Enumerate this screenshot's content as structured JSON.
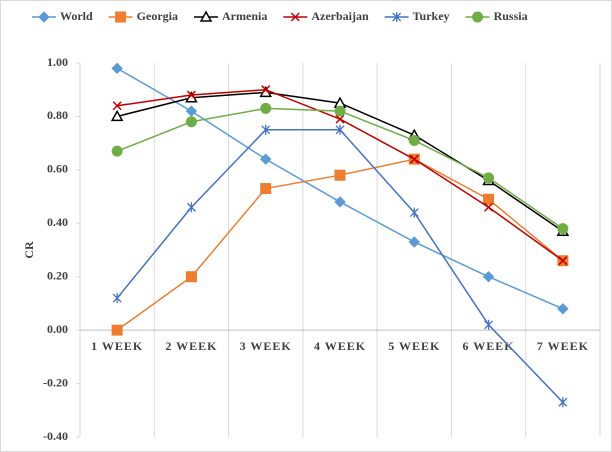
{
  "chart_data": {
    "type": "line",
    "y_label": "CR",
    "categories": [
      "1 WEEK",
      "2 WEEK",
      "3 WEEK",
      "4 WEEK",
      "5 WEEK",
      "6 WEEK",
      "7 WEEK"
    ],
    "series": [
      {
        "name": "World",
        "color": "#5b9bd5",
        "marker": "diamond",
        "values": [
          0.98,
          0.82,
          0.64,
          0.48,
          0.33,
          0.2,
          0.08
        ]
      },
      {
        "name": "Georgia",
        "color": "#ed7d31",
        "marker": "square",
        "values": [
          0.0,
          0.2,
          0.53,
          0.58,
          0.64,
          0.49,
          0.26
        ]
      },
      {
        "name": "Armenia",
        "color": "#000000",
        "marker": "triangle",
        "values": [
          0.8,
          0.87,
          0.89,
          0.85,
          0.73,
          0.56,
          0.37
        ]
      },
      {
        "name": "Azerbaijan",
        "color": "#c00000",
        "marker": "x",
        "values": [
          0.84,
          0.88,
          0.9,
          0.79,
          0.64,
          0.46,
          0.26
        ]
      },
      {
        "name": "Turkey",
        "color": "#4472c4",
        "marker": "star",
        "values": [
          0.12,
          0.46,
          0.75,
          0.75,
          0.44,
          0.02,
          -0.27
        ]
      },
      {
        "name": "Russia",
        "color": "#70ad47",
        "marker": "circle",
        "values": [
          0.67,
          0.78,
          0.83,
          0.82,
          0.71,
          0.57,
          0.38
        ]
      }
    ],
    "ylim": [
      -0.4,
      1.0
    ],
    "yticks": [
      {
        "value": -0.4,
        "label": "-0.40"
      },
      {
        "value": -0.2,
        "label": "-0.20"
      },
      {
        "value": 0,
        "label": "0.00"
      },
      {
        "value": 0.2,
        "label": "0.20"
      },
      {
        "value": 0.4,
        "label": "0.40"
      },
      {
        "value": 0.6,
        "label": "0.60"
      },
      {
        "value": 0.8,
        "label": "0.80"
      },
      {
        "value": 1.0,
        "label": "1.00"
      }
    ],
    "grid": "category",
    "legend": "top"
  }
}
